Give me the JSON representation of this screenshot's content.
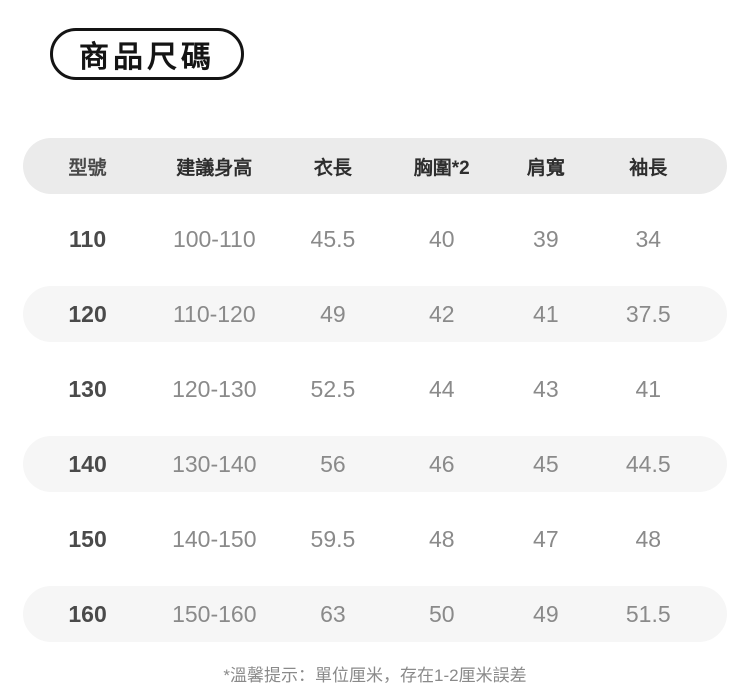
{
  "badge": {
    "label": "商品尺碼"
  },
  "table": {
    "headers": [
      "型號",
      "建議身高",
      "衣長",
      "胸圍*2",
      "肩寬",
      "袖長"
    ],
    "rows": [
      {
        "cells": [
          "110",
          "100-110",
          "45.5",
          "40",
          "39",
          "34"
        ]
      },
      {
        "cells": [
          "120",
          "110-120",
          "49",
          "42",
          "41",
          "37.5"
        ]
      },
      {
        "cells": [
          "130",
          "120-130",
          "52.5",
          "44",
          "43",
          "41"
        ]
      },
      {
        "cells": [
          "140",
          "130-140",
          "56",
          "46",
          "45",
          "44.5"
        ]
      },
      {
        "cells": [
          "150",
          "140-150",
          "59.5",
          "48",
          "47",
          "48"
        ]
      },
      {
        "cells": [
          "160",
          "150-160",
          "63",
          "50",
          "49",
          "51.5"
        ]
      }
    ]
  },
  "footnote": "*溫馨提示：單位厘米，存在1-2厘米誤差",
  "colors": {
    "page_bg": "#ffffff",
    "badge_border": "#141414",
    "header_band": "#ebebeb",
    "stripe_band": "#f6f6f6",
    "header_text": "#2e2e2e",
    "model_text": "#4a4a4a",
    "data_text": "#8a8a8a",
    "footnote_text": "#8a8a8a"
  }
}
